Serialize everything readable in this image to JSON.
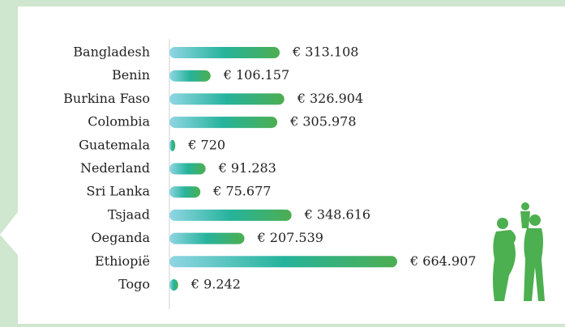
{
  "chart_data": {
    "type": "hbar",
    "categories": [
      "Bangladesh",
      "Benin",
      "Burkina Faso",
      "Colombia",
      "Guatemala",
      "Nederland",
      "Sri Lanka",
      "Tsjaad",
      "Oeganda",
      "Ethiopië",
      "Togo"
    ],
    "values": [
      313108,
      106157,
      326904,
      305978,
      720,
      91283,
      75677,
      348616,
      207539,
      664907,
      9242
    ],
    "value_labels": [
      "€ 313.108",
      "€ 106.157",
      "€ 326.904",
      "€ 305.978",
      "€ 720",
      "€ 91.283",
      "€ 75.677",
      "€ 348.616",
      "€ 207.539",
      "€ 664.907",
      "€ 9.242"
    ],
    "gradient": [
      "#8fd6e3",
      "#25b39b",
      "#4dae51"
    ]
  }
}
